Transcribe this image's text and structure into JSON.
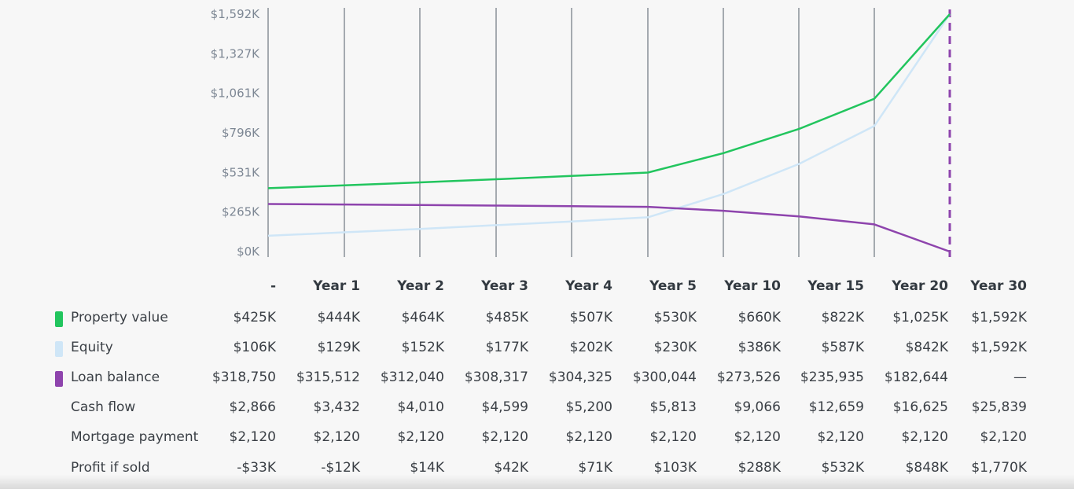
{
  "chart_data": {
    "type": "line",
    "categories": [
      "-",
      "Year 1",
      "Year 2",
      "Year 3",
      "Year 4",
      "Year 5",
      "Year 10",
      "Year 15",
      "Year 20",
      "Year 30"
    ],
    "y_ticks": [
      "$1,592K",
      "$1,327K",
      "$1,061K",
      "$796K",
      "$531K",
      "$265K",
      "$0K"
    ],
    "ylim": [
      0,
      1592
    ],
    "grid": true,
    "series": [
      {
        "name": "Property value",
        "color": "#22c55e",
        "values": [
          425,
          444,
          464,
          485,
          507,
          530,
          660,
          822,
          1025,
          1592
        ]
      },
      {
        "name": "Equity",
        "color": "#cfe6f7",
        "values": [
          106,
          129,
          152,
          177,
          202,
          230,
          386,
          587,
          842,
          1592
        ]
      },
      {
        "name": "Loan balance",
        "color": "#8e44ad",
        "values": [
          318.75,
          315.512,
          312.04,
          308.317,
          304.325,
          300.044,
          273.526,
          235.935,
          182.644,
          0
        ]
      }
    ]
  },
  "table": {
    "headers": [
      "-",
      "Year 1",
      "Year 2",
      "Year 3",
      "Year 4",
      "Year 5",
      "Year 10",
      "Year 15",
      "Year 20",
      "Year 30"
    ],
    "rows": [
      {
        "label": "Property value",
        "swatch": "#22c55e",
        "cells": [
          "$425K",
          "$444K",
          "$464K",
          "$485K",
          "$507K",
          "$530K",
          "$660K",
          "$822K",
          "$1,025K",
          "$1,592K"
        ]
      },
      {
        "label": "Equity",
        "swatch": "#cfe6f7",
        "cells": [
          "$106K",
          "$129K",
          "$152K",
          "$177K",
          "$202K",
          "$230K",
          "$386K",
          "$587K",
          "$842K",
          "$1,592K"
        ]
      },
      {
        "label": "Loan balance",
        "swatch": "#8e44ad",
        "cells": [
          "$318,750",
          "$315,512",
          "$312,040",
          "$308,317",
          "$304,325",
          "$300,044",
          "$273,526",
          "$235,935",
          "$182,644",
          "—"
        ]
      },
      {
        "label": "Cash flow",
        "swatch": "",
        "cells": [
          "$2,866",
          "$3,432",
          "$4,010",
          "$4,599",
          "$5,200",
          "$5,813",
          "$9,066",
          "$12,659",
          "$16,625",
          "$25,839"
        ]
      },
      {
        "label": "Mortgage payment",
        "swatch": "",
        "cells": [
          "$2,120",
          "$2,120",
          "$2,120",
          "$2,120",
          "$2,120",
          "$2,120",
          "$2,120",
          "$2,120",
          "$2,120",
          "$2,120"
        ]
      },
      {
        "label": "Profit if sold",
        "swatch": "",
        "cells": [
          "-$33K",
          "-$12K",
          "$14K",
          "$42K",
          "$71K",
          "$103K",
          "$288K",
          "$532K",
          "$848K",
          "$1,770K"
        ]
      }
    ]
  }
}
